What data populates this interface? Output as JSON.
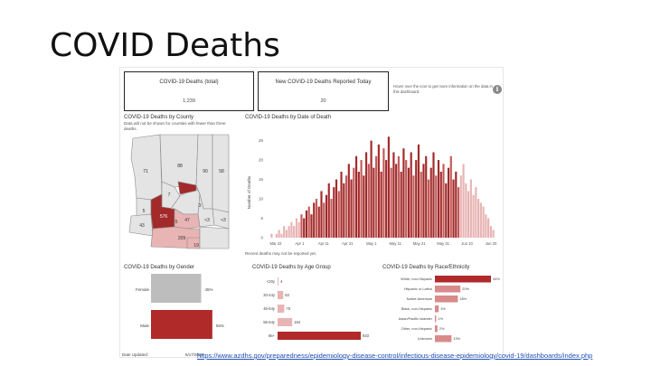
{
  "slide": {
    "title": "COVID Deaths",
    "source_link": "https://www.azdhs.gov/preparedness/epidemiology-disease-control/infectious-disease-epidemiology/covid-19/dashboards/index.php"
  },
  "dashboard": {
    "kpis": [
      {
        "label": "COVID-19 Deaths (total)",
        "value": "1,239"
      },
      {
        "label": "New COVID-19 Deaths Reported Today",
        "value": "20"
      }
    ],
    "hover_note": "Hover over the icon to get more information on the data in this dashboard.",
    "info_icon": "info-icon",
    "county": {
      "title": "COVID-19 Deaths by County",
      "note": "Data will not be shown for counties with fewer than three deaths.",
      "labels": [
        "71",
        "88",
        "90",
        "58",
        "7",
        "5",
        "43",
        "576",
        "47",
        "3",
        "<3",
        "<3",
        "209",
        "19",
        "5"
      ],
      "colors": {
        "dark": "#a32a2a",
        "light": "#e8b4b4",
        "mid": "#d68d8d",
        "none": "#e4e4e4"
      }
    },
    "timeline": {
      "title": "COVID-19 Deaths by Date of Death",
      "note": "Recent deaths may not be reported yet."
    },
    "gender": {
      "title": "COVID-19 Deaths by Gender"
    },
    "age": {
      "title": "COVID-19 Deaths by Age Group"
    },
    "race": {
      "title": "COVID-19 Deaths by Race/Ethnicity"
    },
    "date_updated_label": "Date Updated:",
    "date_updated_value": "6/17/2020"
  },
  "chart_data": [
    {
      "type": "bar",
      "id": "timeline",
      "title": "COVID-19 Deaths by Date of Death",
      "ylabel": "Number of Deaths",
      "xlabel": "",
      "ylim": [
        0,
        27
      ],
      "yticks": [
        0,
        5,
        10,
        15,
        20,
        25
      ],
      "xticks": [
        "Mar 22",
        "Apr 1",
        "Apr 11",
        "Apr 21",
        "May 1",
        "May 11",
        "May 21",
        "May 31",
        "Jun 10",
        "Jun 20"
      ],
      "values": [
        1,
        0,
        1,
        2,
        1,
        3,
        2,
        3,
        4,
        3,
        5,
        4,
        6,
        5,
        7,
        8,
        6,
        9,
        10,
        8,
        12,
        9,
        11,
        14,
        10,
        13,
        15,
        12,
        17,
        14,
        16,
        19,
        15,
        18,
        21,
        17,
        20,
        16,
        22,
        19,
        25,
        18,
        21,
        24,
        17,
        23,
        20,
        26,
        18,
        22,
        19,
        21,
        17,
        23,
        20,
        18,
        22,
        16,
        20,
        24,
        17,
        19,
        21,
        15,
        18,
        22,
        16,
        20,
        17,
        19,
        14,
        18,
        21,
        15,
        17,
        13,
        16,
        19,
        14,
        12,
        15,
        11,
        13,
        10,
        9,
        8,
        6,
        5,
        3,
        2
      ],
      "highlight_color": "#a32a2a",
      "recent_color": "#e8b4b4"
    },
    {
      "type": "bar",
      "id": "gender",
      "title": "COVID-19 Deaths by Gender",
      "categories": [
        "Female",
        "Male"
      ],
      "values": [
        45,
        55
      ],
      "labels": [
        "45%",
        "55%"
      ],
      "colors": [
        "#bdbdbd",
        "#b02a2a"
      ]
    },
    {
      "type": "bar",
      "id": "age",
      "title": "COVID-19 Deaths by Age Group",
      "categories": [
        "<20y",
        "20-44y",
        "45-54y",
        "55-64y",
        "65+"
      ],
      "values": [
        4,
        63,
        75,
        164,
        933
      ],
      "color": "#e8b4b4",
      "max_color": "#b02a2a"
    },
    {
      "type": "bar",
      "id": "race",
      "title": "COVID-19 Deaths by Race/Ethnicity",
      "categories": [
        "White, non-Hispanic",
        "Hispanic or Latino",
        "Native American",
        "Black, non-Hispanic",
        "Asian/Pacific Islander",
        "Other, non-Hispanic",
        "Unknown"
      ],
      "values": [
        44,
        20,
        18,
        3,
        1,
        2,
        13
      ],
      "labels": [
        "44%",
        "20%",
        "18%",
        "3%",
        "1%",
        "2%",
        "13%"
      ],
      "color": "#d98a8a",
      "max_color": "#b02a2a"
    }
  ]
}
